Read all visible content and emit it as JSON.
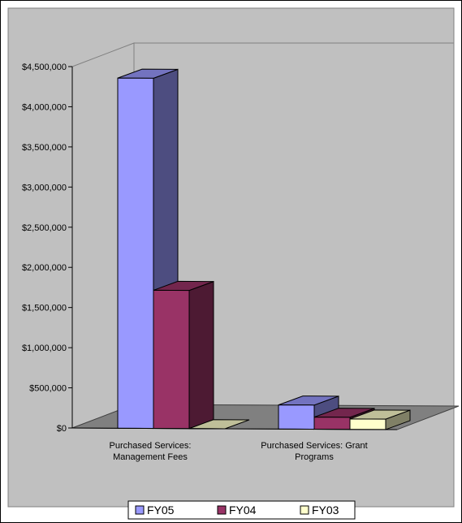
{
  "chart_data": {
    "type": "bar",
    "style": "3d-clustered-column",
    "categories": [
      [
        "Purchased Services:",
        "Management Fees"
      ],
      [
        "Purchased Services:  Grant",
        "Programs"
      ]
    ],
    "series": [
      {
        "name": "FY05",
        "values": [
          4360000,
          300000
        ],
        "color": "#9999ff",
        "side_color": "#4d4d80",
        "top_color": "#7373bf"
      },
      {
        "name": "FY04",
        "values": [
          1720000,
          150000
        ],
        "color": "#993366",
        "side_color": "#4d1a33",
        "top_color": "#73264d"
      },
      {
        "name": "FY03",
        "values": [
          0,
          130000
        ],
        "color": "#ffffcc",
        "side_color": "#808066",
        "top_color": "#bfbf99"
      }
    ],
    "y_ticks": [
      "$0",
      "$500,000",
      "$1,000,000",
      "$1,500,000",
      "$2,000,000",
      "$2,500,000",
      "$3,000,000",
      "$3,500,000",
      "$4,000,000",
      "$4,500,000"
    ],
    "ylim": [
      0,
      4500000
    ],
    "grid": false,
    "legend_position": "bottom",
    "colors": {
      "wall": "#c0c0c0",
      "floor": "#808080",
      "page_bg": "#c0c0c0"
    }
  }
}
